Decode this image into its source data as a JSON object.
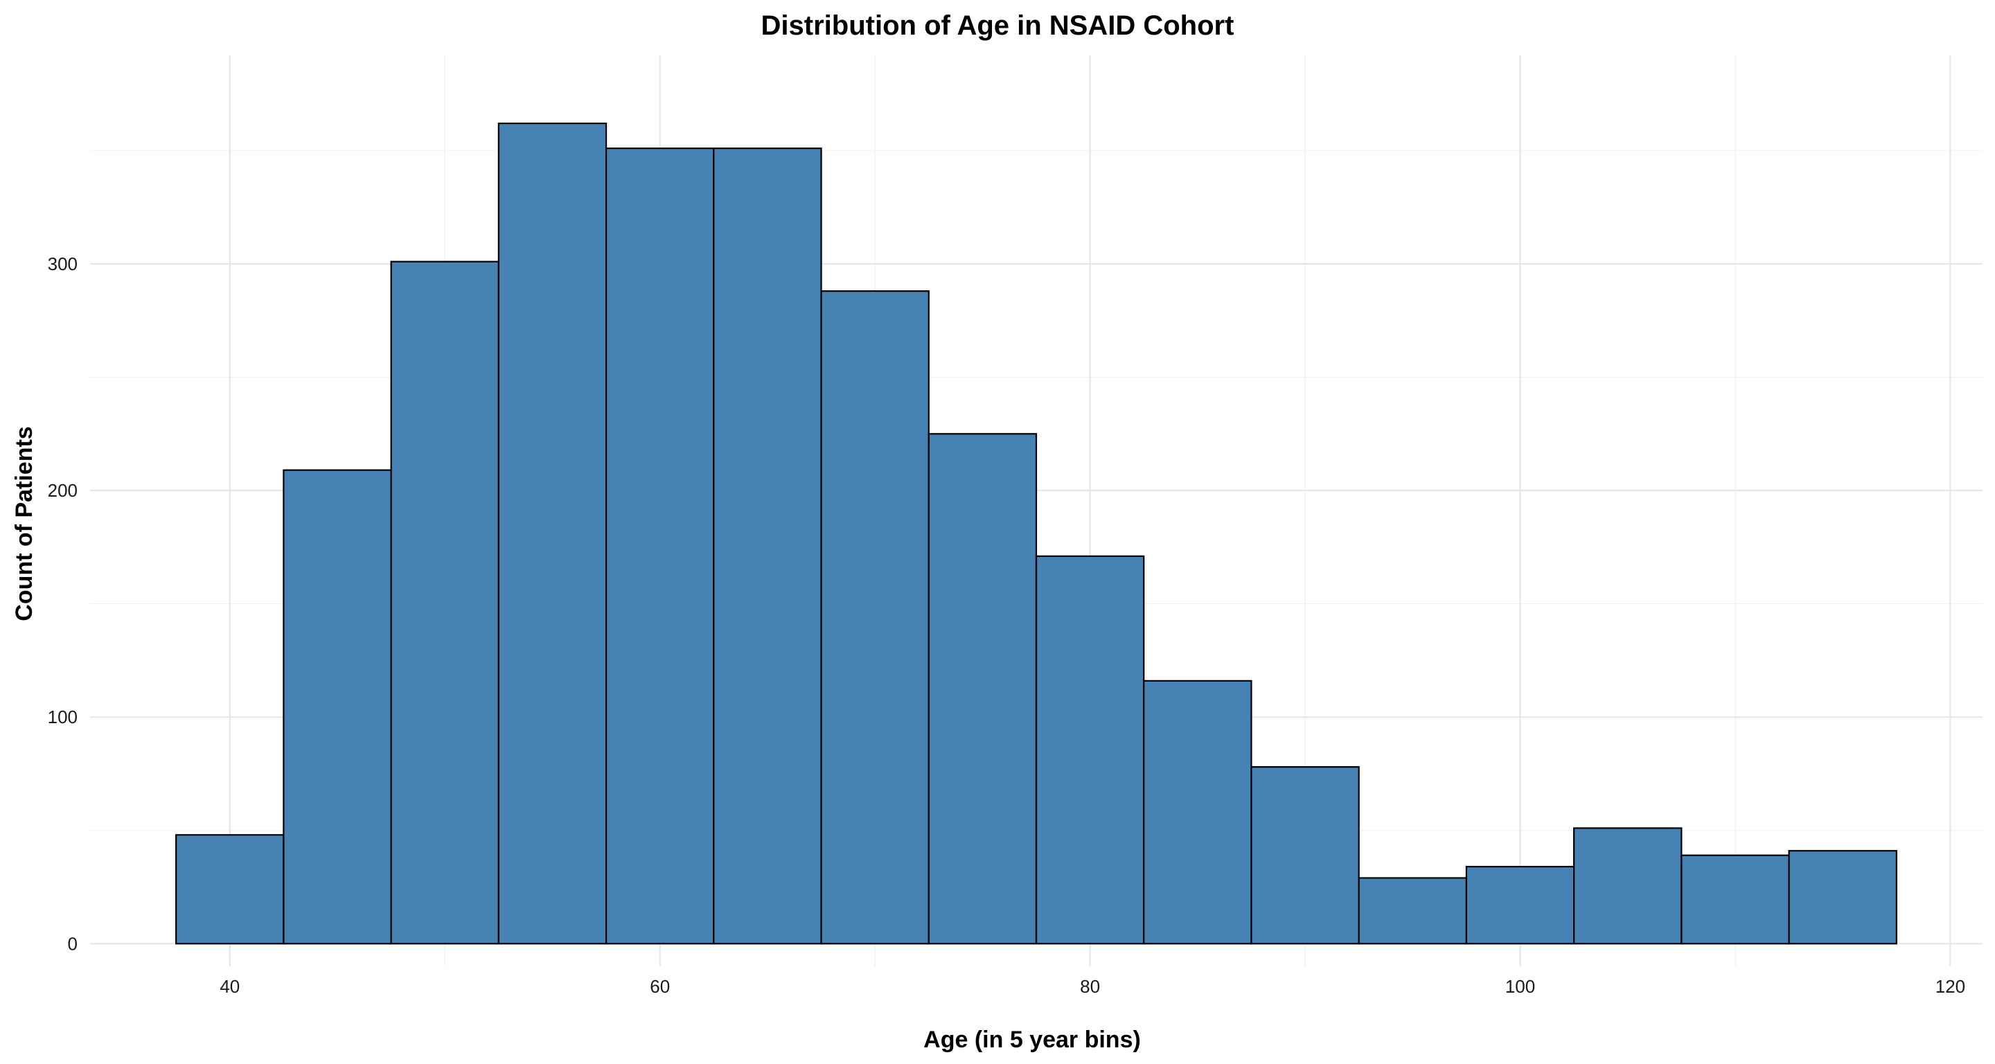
{
  "chart_data": {
    "type": "bar",
    "title": "Distribution of Age in NSAID Cohort",
    "xlabel": "Age (in 5 year bins)",
    "ylabel": "Count of Patients",
    "bin_width": 5,
    "bins": [
      {
        "x_start": 37.5,
        "x_end": 42.5,
        "count": 48
      },
      {
        "x_start": 42.5,
        "x_end": 47.5,
        "count": 209
      },
      {
        "x_start": 47.5,
        "x_end": 52.5,
        "count": 301
      },
      {
        "x_start": 52.5,
        "x_end": 57.5,
        "count": 362
      },
      {
        "x_start": 57.5,
        "x_end": 62.5,
        "count": 351
      },
      {
        "x_start": 62.5,
        "x_end": 67.5,
        "count": 351
      },
      {
        "x_start": 67.5,
        "x_end": 72.5,
        "count": 288
      },
      {
        "x_start": 72.5,
        "x_end": 77.5,
        "count": 225
      },
      {
        "x_start": 77.5,
        "x_end": 82.5,
        "count": 171
      },
      {
        "x_start": 82.5,
        "x_end": 87.5,
        "count": 116
      },
      {
        "x_start": 87.5,
        "x_end": 92.5,
        "count": 78
      },
      {
        "x_start": 92.5,
        "x_end": 97.5,
        "count": 29
      },
      {
        "x_start": 97.5,
        "x_end": 102.5,
        "count": 34
      },
      {
        "x_start": 102.5,
        "x_end": 107.5,
        "count": 51
      },
      {
        "x_start": 107.5,
        "x_end": 112.5,
        "count": 39
      },
      {
        "x_start": 112.5,
        "x_end": 117.5,
        "count": 41
      }
    ],
    "xlim": [
      33.5,
      121.5
    ],
    "ylim": [
      -10,
      392
    ],
    "x_ticks": [
      40,
      60,
      80,
      100,
      120
    ],
    "y_ticks": [
      0,
      100,
      200,
      300
    ],
    "x_minor_ticks": [
      50,
      70,
      90,
      110
    ],
    "y_minor_ticks": [
      50,
      150,
      250,
      350
    ],
    "grid": true,
    "legend": "none",
    "bar_fill": "#4682B4",
    "bar_outline": "#000000"
  }
}
